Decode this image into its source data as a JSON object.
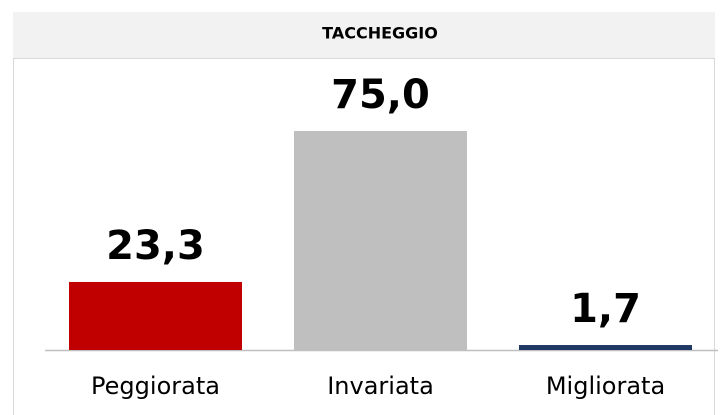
{
  "chart_data": {
    "type": "bar",
    "title": "TACCHEGGIO",
    "categories": [
      "Peggiorata",
      "Invariata",
      "Migliorata"
    ],
    "values": [
      23.3,
      75.0,
      1.7
    ],
    "value_labels": [
      "23,3",
      "75,0",
      "1,7"
    ],
    "colors": [
      "#c00000",
      "#bfbfbf",
      "#1f3864"
    ],
    "ylim": [
      0,
      100
    ]
  }
}
